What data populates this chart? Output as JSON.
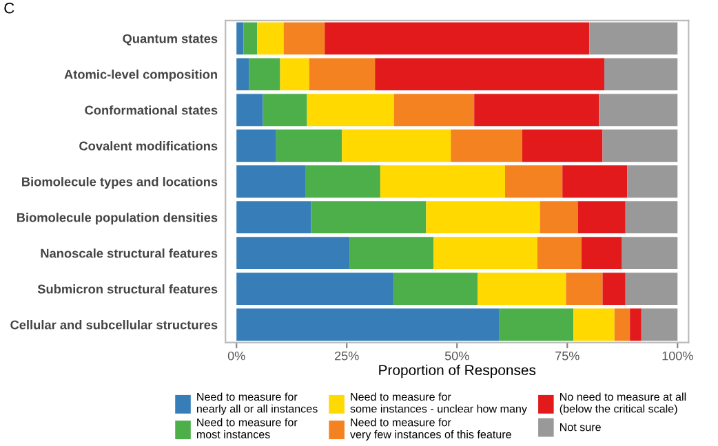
{
  "chart_data": {
    "type": "bar",
    "orientation": "horizontal",
    "stacked": true,
    "annotations": [
      "C"
    ],
    "xlabel": "Proportion of Responses",
    "categories": [
      "Quantum states",
      "Atomic-level composition",
      "Conformational states",
      "Covalent modifications",
      "Biomolecule types and locations",
      "Biomolecule population densities",
      "Nanoscale structural features",
      "Submicron structural features",
      "Cellular and subcellular structures"
    ],
    "series": [
      {
        "name": "Need to measure for\nnearly all or all instances",
        "color": "#377eb8",
        "values": [
          1.6,
          2.8,
          6.0,
          9.0,
          15.6,
          16.9,
          25.6,
          35.7,
          59.5
        ]
      },
      {
        "name": "Need to measure for\nmost instances",
        "color": "#4daf4a",
        "values": [
          3.1,
          7.1,
          10.0,
          14.9,
          17.0,
          26.1,
          19.1,
          19.0,
          16.9
        ]
      },
      {
        "name": "Need to measure for\nsome instances - unclear how many",
        "color": "#ffd900",
        "values": [
          6.0,
          6.6,
          19.7,
          24.7,
          28.3,
          25.8,
          23.5,
          20.0,
          9.3
        ]
      },
      {
        "name": "Need to measure for\nvery few instances of this feature",
        "color": "#f58220",
        "values": [
          9.3,
          14.9,
          18.2,
          16.2,
          13.0,
          8.6,
          10.0,
          8.3,
          3.5
        ]
      },
      {
        "name": "No need to measure at all\n(below the critical scale)",
        "color": "#e31a1c",
        "values": [
          60.0,
          52.0,
          28.3,
          18.2,
          14.7,
          10.8,
          9.2,
          5.2,
          2.6
        ]
      },
      {
        "name": "Not sure",
        "color": "#999999",
        "values": [
          20.0,
          16.6,
          17.8,
          17.0,
          11.4,
          11.8,
          12.6,
          11.8,
          8.2
        ]
      }
    ],
    "xlim": [
      -2.5,
      102.5
    ],
    "xticks": [
      {
        "value": 0,
        "label": "0%"
      },
      {
        "value": 25,
        "label": "25%"
      },
      {
        "value": 50,
        "label": "50%"
      },
      {
        "value": 75,
        "label": "75%"
      },
      {
        "value": 100,
        "label": "100%"
      }
    ],
    "grid": false,
    "legend": "bottom"
  }
}
